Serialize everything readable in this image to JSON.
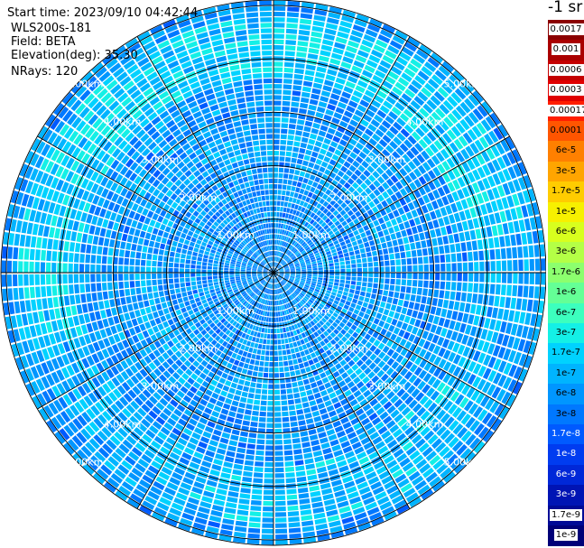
{
  "header": {
    "start_time": "Start time: 2023/09/10 04:42:44",
    "device": "WLS200s-181",
    "field": "Field: BETA",
    "elevation": "Elevation(deg): 35.30",
    "nrays": "NRays: 120"
  },
  "colorbar": {
    "unit": "-1 sr",
    "ticks": [
      {
        "label": "0.0017",
        "color": "#8b0000"
      },
      {
        "label": "0.001",
        "color": "#aa0000"
      },
      {
        "label": "0.0006",
        "color": "#c40000"
      },
      {
        "label": "0.0003",
        "color": "#e00000"
      },
      {
        "label": "0.00017",
        "color": "#ff1e00"
      },
      {
        "label": "0.0001",
        "color": "#ff5500"
      },
      {
        "label": "6e-5",
        "color": "#ff8000"
      },
      {
        "label": "3e-5",
        "color": "#ffa500"
      },
      {
        "label": "1.7e-5",
        "color": "#ffcc00"
      },
      {
        "label": "1e-5",
        "color": "#f7f000"
      },
      {
        "label": "6e-6",
        "color": "#d8ff1e"
      },
      {
        "label": "3e-6",
        "color": "#b4ff46"
      },
      {
        "label": "1.7e-6",
        "color": "#8cff6e"
      },
      {
        "label": "1e-6",
        "color": "#64ff96"
      },
      {
        "label": "6e-7",
        "color": "#3cffbe"
      },
      {
        "label": "3e-7",
        "color": "#14f0e6"
      },
      {
        "label": "1.7e-7",
        "color": "#00d2ff"
      },
      {
        "label": "1e-7",
        "color": "#00b4ff"
      },
      {
        "label": "6e-8",
        "color": "#0096ff"
      },
      {
        "label": "3e-8",
        "color": "#0078ff"
      },
      {
        "label": "1.7e-8",
        "color": "#005aff"
      },
      {
        "label": "1e-8",
        "color": "#003cf0"
      },
      {
        "label": "6e-9",
        "color": "#0028d8"
      },
      {
        "label": "3e-9",
        "color": "#0014b4"
      },
      {
        "label": "1.7e-9",
        "color": "#000a96"
      },
      {
        "label": "1e-9",
        "color": "#000078"
      }
    ]
  },
  "chart_data": {
    "type": "heatmap",
    "projection": "polar",
    "field": "BETA",
    "elevation_deg": 35.3,
    "n_rays": 120,
    "range_ring_labels": [
      "1.00km",
      "2.00km",
      "3.00km",
      "4.00km",
      "5.00km"
    ],
    "range_rings_km": [
      1,
      2,
      3,
      4,
      5
    ],
    "max_range_km": 5.1,
    "azimuth_spokes_deg": [
      0,
      30,
      60,
      90,
      120,
      150,
      180,
      210,
      240,
      270,
      300,
      330
    ],
    "range_gates": 49,
    "value_range": [
      1e-09,
      0.0017
    ],
    "color_scale": "log",
    "predominant_range": [
      1e-08,
      3e-07
    ],
    "enhanced_band_range_km": [
      3.6,
      4.8
    ],
    "enhanced_band_value": 6e-07
  }
}
